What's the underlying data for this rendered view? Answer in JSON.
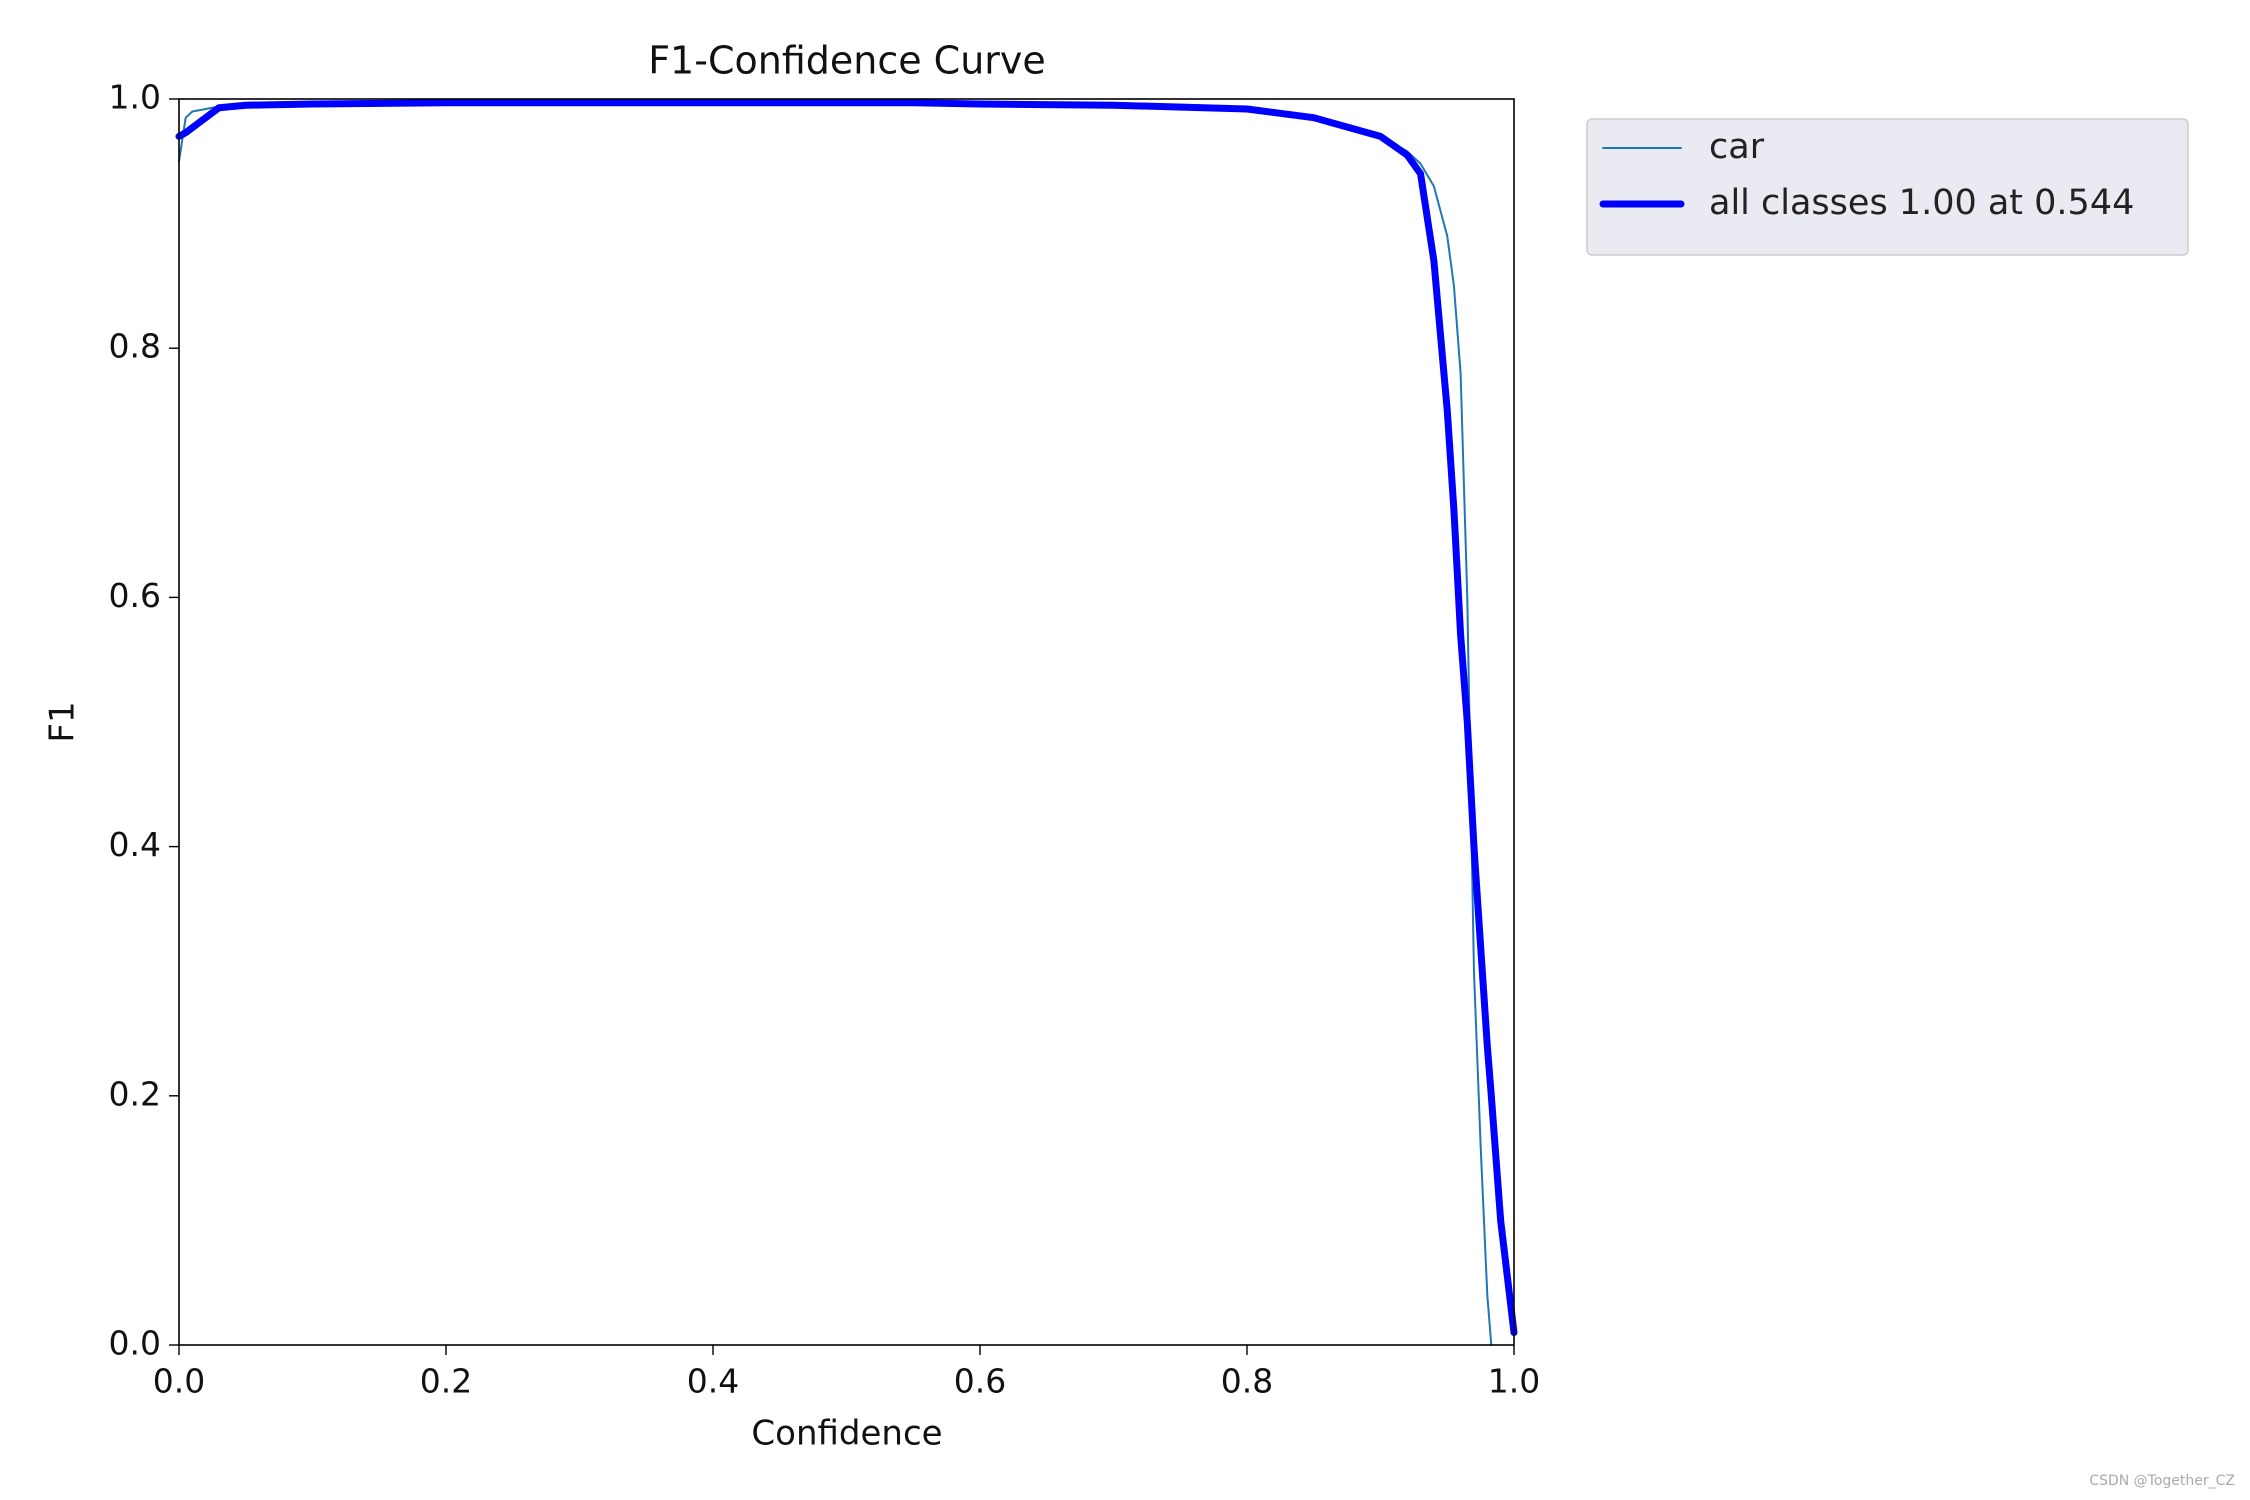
{
  "chart_data": {
    "type": "line",
    "title": "F1-Confidence Curve",
    "x_label": "Confidence",
    "y_label": "F1",
    "x": [
      0,
      0.005,
      0.01,
      0.02,
      0.03,
      0.05,
      0.1,
      0.2,
      0.3,
      0.4,
      0.5,
      0.55,
      0.6,
      0.7,
      0.8,
      0.85,
      0.9,
      0.92,
      0.93,
      0.94,
      0.95,
      0.955,
      0.96,
      0.965,
      0.97,
      0.975,
      0.98,
      0.983,
      0.99,
      1.0
    ],
    "series": [
      {
        "name": "car",
        "color": "#1f77b4",
        "linewidth": 2,
        "values": [
          0.95,
          0.985,
          0.99,
          0.992,
          0.994,
          0.996,
          0.997,
          0.997,
          0.997,
          0.997,
          0.997,
          0.997,
          0.997,
          0.995,
          0.993,
          0.986,
          0.97,
          0.958,
          0.948,
          0.93,
          0.89,
          0.85,
          0.78,
          0.6,
          0.3,
          0.16,
          0.04,
          0,
          null,
          null
        ]
      },
      {
        "name": "all classes 1.00 at 0.544",
        "color": "#0000ff",
        "linewidth": 7,
        "values": [
          0.97,
          0.973,
          0.977,
          0.985,
          0.993,
          0.995,
          0.996,
          0.997,
          0.997,
          0.997,
          0.997,
          0.997,
          0.996,
          0.995,
          0.992,
          0.985,
          0.97,
          0.955,
          0.94,
          0.87,
          0.75,
          0.67,
          0.57,
          0.5,
          0.4,
          0.32,
          0.24,
          0.2,
          0.1,
          0.01
        ]
      }
    ],
    "xlim": [
      0,
      1
    ],
    "ylim": [
      0,
      1
    ],
    "xticks": [
      {
        "value": 0,
        "label": "0.0"
      },
      0.2,
      0.4,
      0.6,
      0.8,
      {
        "value": 1,
        "label": "1.0"
      }
    ],
    "yticks": [
      {
        "value": 0,
        "label": "0.0"
      },
      0.2,
      0.4,
      0.6,
      0.8,
      {
        "value": 1,
        "label": "1.0"
      }
    ],
    "grid": false,
    "legend": "outside-upper-right",
    "watermark": "CSDN @Together_CZ"
  }
}
